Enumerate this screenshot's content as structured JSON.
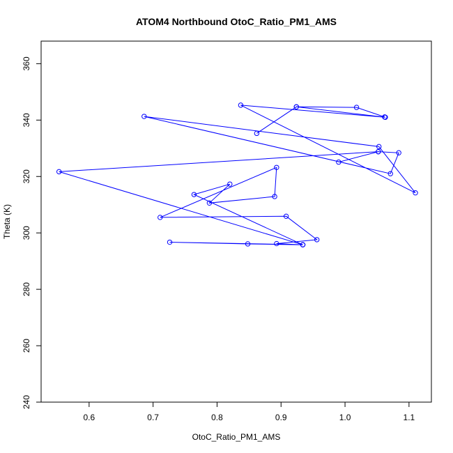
{
  "chart_data": {
    "type": "line",
    "title": "ATOM4 Northbound OtoC_Ratio_PM1_AMS",
    "xlabel": "OtoC_Ratio_PM1_AMS",
    "ylabel": "Theta (K)",
    "xlim": [
      0.525,
      1.135
    ],
    "ylim": [
      240,
      368
    ],
    "xticks": [
      0.6,
      0.7,
      0.8,
      0.9,
      1.0,
      1.1
    ],
    "xtick_labels": [
      "0.6",
      "0.7",
      "0.8",
      "0.9",
      "1.0",
      "1.1"
    ],
    "yticks": [
      240,
      260,
      280,
      300,
      320,
      340,
      360
    ],
    "ytick_labels": [
      "240",
      "260",
      "280",
      "300",
      "320",
      "340",
      "360"
    ],
    "grid": false,
    "markers": "open-circle",
    "color": "#0000ff",
    "series": [
      {
        "x": [
          1.062,
          1.018,
          0.924,
          0.862,
          0.924,
          1.063,
          0.837,
          1.11,
          1.053,
          0.686,
          1.071,
          1.084,
          1.052,
          0.99,
          1.052,
          0.553,
          0.934,
          0.764,
          0.82,
          0.788,
          0.89,
          0.893,
          0.711,
          0.908,
          0.956,
          0.893,
          0.934,
          0.726,
          0.848,
          0.934
        ],
        "y": [
          341.1,
          344.5,
          344.7,
          335.3,
          344.7,
          341.0,
          345.3,
          314.2,
          330.6,
          341.3,
          321.0,
          328.4,
          328.8,
          325.1,
          328.8,
          321.7,
          295.8,
          313.6,
          317.3,
          310.6,
          312.9,
          323.2,
          305.5,
          305.9,
          297.6,
          296.2,
          295.8,
          296.7,
          296.1,
          295.8
        ]
      }
    ]
  }
}
